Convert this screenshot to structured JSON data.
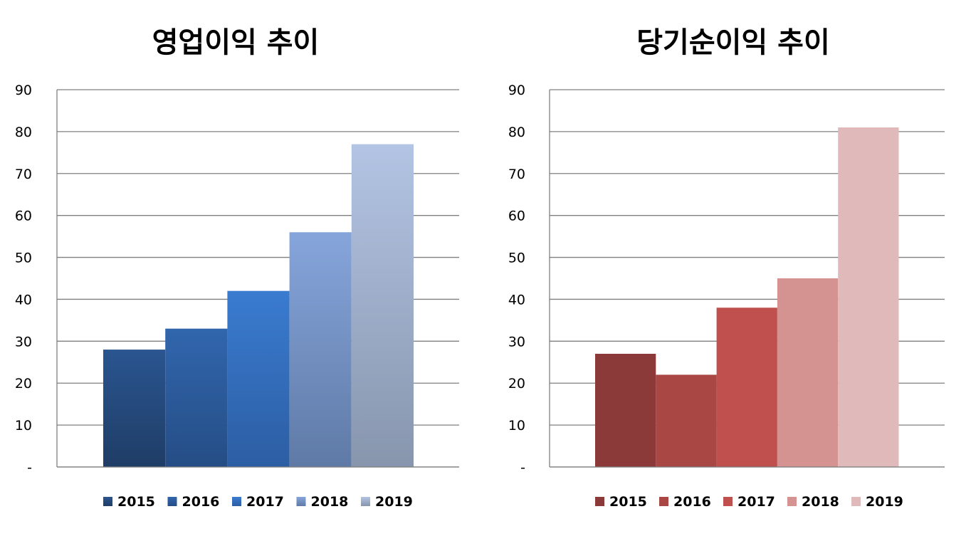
{
  "chart_data": [
    {
      "type": "bar",
      "title": "영업이익 추이",
      "categories": [
        "2015",
        "2016",
        "2017",
        "2018",
        "2019"
      ],
      "values": [
        28,
        33,
        42,
        56,
        77
      ],
      "ylim": [
        0,
        90
      ],
      "yticks": [
        0,
        10,
        20,
        30,
        40,
        50,
        60,
        70,
        80,
        90
      ],
      "ytick_labels": [
        "-",
        "10",
        "20",
        "30",
        "40",
        "50",
        "60",
        "70",
        "80",
        "90"
      ],
      "grid": true,
      "legend": "bottom",
      "xlabel": "",
      "ylabel": "",
      "colors": [
        [
          "#2a5590",
          "#1f3d66"
        ],
        [
          "#3166ad",
          "#254d85"
        ],
        [
          "#3a7bd0",
          "#2c5ea3"
        ],
        [
          "#86a5db",
          "#5f7aa6"
        ],
        [
          "#b3c4e4",
          "#8796ad"
        ]
      ]
    },
    {
      "type": "bar",
      "title": "당기순이익 추이",
      "categories": [
        "2015",
        "2016",
        "2017",
        "2018",
        "2019"
      ],
      "values": [
        27,
        22,
        38,
        45,
        81
      ],
      "ylim": [
        0,
        90
      ],
      "yticks": [
        0,
        10,
        20,
        30,
        40,
        50,
        60,
        70,
        80,
        90
      ],
      "ytick_labels": [
        "-",
        "10",
        "20",
        "30",
        "40",
        "50",
        "60",
        "70",
        "80",
        "90"
      ],
      "grid": true,
      "legend": "bottom",
      "xlabel": "",
      "ylabel": "",
      "colors": [
        [
          "#8b3a39",
          "#8b3a39"
        ],
        [
          "#a94745",
          "#a94745"
        ],
        [
          "#c0504d",
          "#c0504d"
        ],
        [
          "#d49391",
          "#d49391"
        ],
        [
          "#e0baba",
          "#e0baba"
        ]
      ]
    }
  ]
}
